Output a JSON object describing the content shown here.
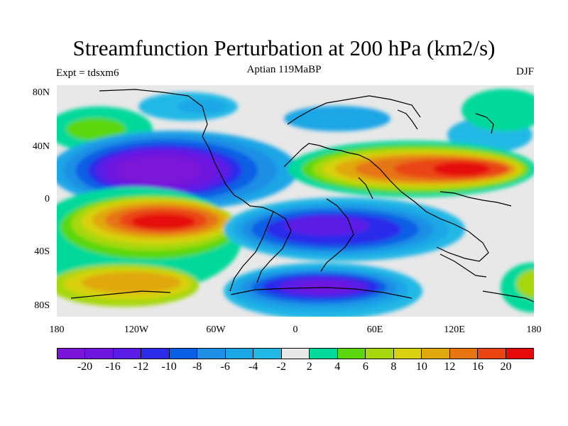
{
  "title": "Streamfunction Perturbation at 200 hPa (km2/s)",
  "left_label": "Expt = tdsxm6",
  "center_label": "Aptian   119MaBP",
  "right_label": "DJF",
  "lat_labels": [
    "80N",
    "40N",
    "0",
    "40S",
    "80S"
  ],
  "lon_labels": [
    "180",
    "120W",
    "60W",
    "0",
    "60E",
    "120E",
    "180"
  ],
  "colorbar": {
    "colors": [
      "#7b14d9",
      "#6e16de",
      "#5b1be6",
      "#2c2bea",
      "#0b5fe5",
      "#1f8fe5",
      "#1da6e6",
      "#22b8e6",
      "#e8e8e8",
      "#00d99a",
      "#5ad70f",
      "#a6d70f",
      "#d7d10f",
      "#e0a80f",
      "#e67512",
      "#ea4412",
      "#e60a0a"
    ],
    "labels": [
      "-20",
      "-16",
      "-12",
      "-10",
      "-8",
      "-6",
      "-4",
      "-2",
      "2",
      "4",
      "6",
      "8",
      "10",
      "12",
      "16",
      "20"
    ]
  }
}
